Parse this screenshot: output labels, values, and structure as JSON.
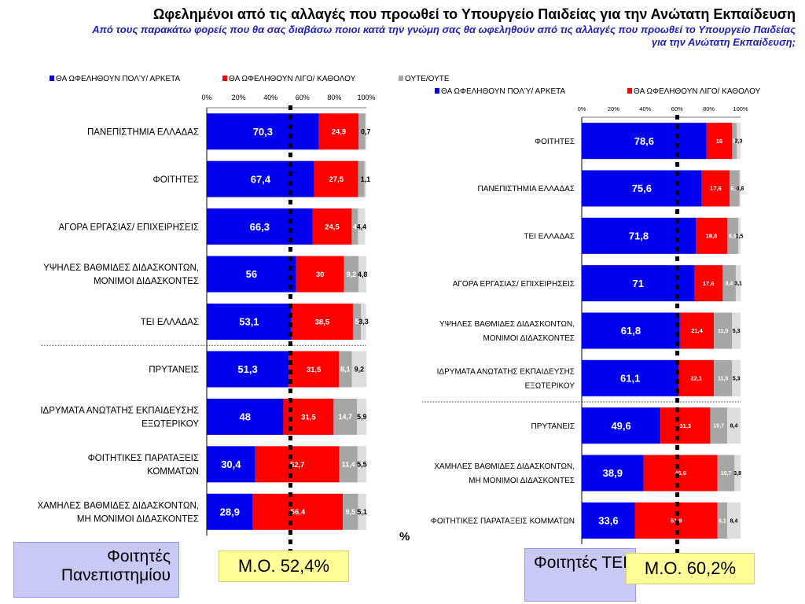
{
  "title": "Ωφελημένοι από τις αλλαγές που προωθεί το Υπουργείο Παιδείας για την Ανώτατη Εκπαίδευση",
  "subtitle": "Από τους παρακάτω φορείς που θα σας διαβάσω ποιοι κατά την γνώμη σας θα ωφεληθούν από τις αλλαγές που προωθεί το Υπουργείο Παιδείας για την Ανώτατη Εκπαίδευση;",
  "colors": {
    "much": "#0000ee",
    "little": "#ff0000",
    "neither": "#a6a6a6",
    "dk": "#dddddd"
  },
  "percent_sign": "%",
  "chart_data": [
    {
      "type": "bar",
      "orientation": "horizontal",
      "stacked": true,
      "panel_label": "Φοιτητές Πανεπιστημίου",
      "mean_label": "Μ.Ο. 52,4%",
      "mean_value": 52.4,
      "xlim": [
        0,
        100
      ],
      "xticks": [
        "0%",
        "20%",
        "40%",
        "60%",
        "80%",
        "100%"
      ],
      "legend": [
        "ΘΑ ΩΦΕΛΗΘΟΥΝ ΠΟΛΎ/ ΑΡΚΕΤΑ",
        "ΘΑ ΩΦΕΛΗΘΟΥΝ ΛΙΓΟ/ ΚΑΘΟΛΟΥ",
        "ΟΥΤΕ/ΟΥΤΕ"
      ],
      "legend_position": "top",
      "separator_after_index": 4,
      "categories": [
        [
          "ΠΑΝΕΠΙΣΤΗΜΙΑ ΕΛΛΑΔΑΣ"
        ],
        [
          "ΦΟΙΤΗΤΕΣ"
        ],
        [
          "ΑΓΟΡΑ ΕΡΓΑΣΙΑΣ/ ΕΠΙΧΕΙΡΗΣΕΙΣ"
        ],
        [
          "ΥΨΗΛΕΣ ΒΑΘΜΙΔΕΣ ΔΙΔΑΣΚΟΝΤΩΝ,",
          "ΜΟΝΙΜΟΙ ΔΙΔΑΣΚΟΝΤΕΣ"
        ],
        [
          "ΤΕΙ ΕΛΛΑΔΑΣ"
        ],
        [
          "ΠΡΥΤΑΝΕΙΣ"
        ],
        [
          "ΙΔΡΥΜΑΤΑ ΑΝΩΤΑΤΗΣ ΕΚΠΑΙΔΕΥΣΗΣ",
          "ΕΞΩΤΕΡΙΚΟΥ"
        ],
        [
          "ΦΟΙΤΗΤΙΚΕΣ ΠΑΡΑΤΑΞΕΙΣ",
          "ΚΟΜΜΑΤΩΝ"
        ],
        [
          "ΧΑΜΗΛΕΣ ΒΑΘΜΙΔΕΣ ΔΙΔΑΣΚΟΝΤΩΝ,",
          "ΜΗ ΜΟΝΙΜΟΙ ΔΙΔΑΣΚΟΝΤΕΣ"
        ]
      ],
      "values": [
        [
          70.3,
          24.9,
          4.1,
          0.7
        ],
        [
          67.4,
          27.5,
          4.0,
          1.1
        ],
        [
          66.3,
          24.5,
          4.0,
          4.4
        ],
        [
          56,
          30,
          9.2,
          4.8
        ],
        [
          53.1,
          38.5,
          5.0,
          3.3
        ],
        [
          51.3,
          31.5,
          8.1,
          9.2
        ],
        [
          48,
          31.5,
          14.7,
          5.9
        ],
        [
          30.4,
          52.7,
          11.4,
          5.5
        ],
        [
          28.9,
          56.4,
          9.5,
          5.1
        ]
      ],
      "labels": [
        [
          "70,3",
          "24,9",
          "",
          "0,7"
        ],
        [
          "67,4",
          "27,5",
          "",
          "1,1"
        ],
        [
          "66,3",
          "24,5",
          "4",
          "4,4"
        ],
        [
          "56",
          "30",
          "9,2",
          "4,8"
        ],
        [
          "53,1",
          "38,5",
          "5",
          "3,3"
        ],
        [
          "51,3",
          "31,5",
          "8,1",
          "9,2"
        ],
        [
          "48",
          "31,5",
          "14,7",
          "5,9"
        ],
        [
          "30,4",
          "52,7",
          "11,4",
          "5,5"
        ],
        [
          "28,9",
          "56,4",
          "9,5",
          "5,1"
        ]
      ]
    },
    {
      "type": "bar",
      "orientation": "horizontal",
      "stacked": true,
      "panel_label": "Φοιτητές ΤΕΙ",
      "mean_label": "Μ.Ο. 60,2%",
      "mean_value": 60.2,
      "xlim": [
        0,
        100
      ],
      "xticks": [
        "0%",
        "20%",
        "40%",
        "60%",
        "80%",
        "100%"
      ],
      "legend": [
        "ΘΑ ΩΦΕΛΗΘΟΥΝ ΠΟΛΎ/ ΑΡΚΕΤΑ",
        "ΘΑ ΩΦΕΛΗΘΟΥΝ ΛΙΓΟ/ ΚΑΘΟΛΟΥ"
      ],
      "legend_position": "top",
      "separator_after_index": 5,
      "categories": [
        [
          "ΦΟΙΤΗΤΕΣ"
        ],
        [
          "ΠΑΝΕΠΙΣΤΗΜΙΑ ΕΛΛΑΔΑΣ"
        ],
        [
          "ΤΕΙ ΕΛΛΑΔΑΣ"
        ],
        [
          "ΑΓΟΡΑ ΕΡΓΑΣΙΑΣ/ ΕΠΙΧΕΙΡΗΣΕΙΣ"
        ],
        [
          "ΥΨΗΛΕΣ ΒΑΘΜΙΔΕΣ ΔΙΔΑΣΚΟΝΤΩΝ,",
          "ΜΟΝΙΜΟΙ ΔΙΔΑΣΚΟΝΤΕΣ"
        ],
        [
          "ΙΔΡΥΜΑΤΑ ΑΝΩΤΑΤΗΣ ΕΚΠΑΙΔΕΥΣΗΣ",
          "ΕΞΩΤΕΡΙΚΟΥ"
        ],
        [
          "ΠΡΥΤΑΝΕΙΣ"
        ],
        [
          "ΧΑΜΗΛΕΣ ΒΑΘΜΙΔΕΣ ΔΙΔΑΣΚΟΝΤΩΝ,",
          "ΜΗ ΜΟΝΙΜΟΙ ΔΙΔΑΣΚΟΝΤΕΣ"
        ],
        [
          "ΦΟΙΤΗΤΙΚΕΣ ΠΑΡΑΤΑΞΕΙΣ ΚΟΜΜΑΤΩΝ"
        ]
      ],
      "values": [
        [
          78.6,
          16,
          3.1,
          2.3
        ],
        [
          75.6,
          17.6,
          6.1,
          0.8
        ],
        [
          71.8,
          19.8,
          6.9,
          1.5
        ],
        [
          71,
          17.6,
          8.4,
          3.1
        ],
        [
          61.8,
          21.4,
          11.5,
          5.3
        ],
        [
          61.1,
          22.1,
          11.5,
          5.3
        ],
        [
          49.6,
          31.3,
          10.7,
          8.4
        ],
        [
          38.9,
          46.6,
          10.7,
          3.8
        ],
        [
          33.6,
          51.9,
          6.1,
          8.4
        ]
      ],
      "labels": [
        [
          "78,6",
          "16",
          "3,",
          "2,3"
        ],
        [
          "75,6",
          "17,6",
          "6,1",
          "0,8"
        ],
        [
          "71,8",
          "19,8",
          "6,9",
          "1,5"
        ],
        [
          "71",
          "17,6",
          "8,4",
          "3,1"
        ],
        [
          "61,8",
          "21,4",
          "11,5",
          "5,3"
        ],
        [
          "61,1",
          "22,1",
          "11,5",
          "5,3"
        ],
        [
          "49,6",
          "31,3",
          "10,7",
          "8,4"
        ],
        [
          "38,9",
          "46,6",
          "10,7",
          "3,8"
        ],
        [
          "33,6",
          "51,9",
          "6,1",
          "8,4"
        ]
      ]
    }
  ]
}
